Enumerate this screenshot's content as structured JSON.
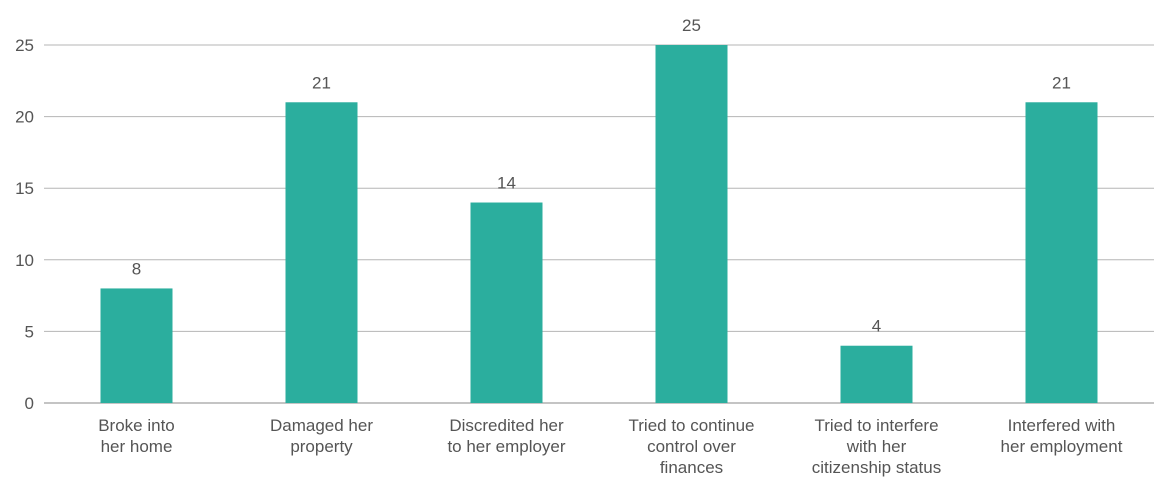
{
  "chart_data": {
    "type": "bar",
    "title": "",
    "xlabel": "",
    "ylabel": "",
    "categories": [
      [
        "Broke into",
        "her home"
      ],
      [
        "Damaged her",
        "property"
      ],
      [
        "Discredited her",
        "to her employer"
      ],
      [
        "Tried to continue",
        "control over",
        "finances"
      ],
      [
        "Tried to interfere",
        "with her",
        "citizenship status"
      ],
      [
        "Interfered with",
        "her employment"
      ]
    ],
    "values": [
      8,
      21,
      14,
      25,
      4,
      21
    ],
    "ylim": [
      0,
      25
    ],
    "yticks": [
      0,
      5,
      10,
      15,
      20,
      25
    ],
    "grid": true,
    "legend": "none",
    "bar_color": "#2bae9e"
  }
}
